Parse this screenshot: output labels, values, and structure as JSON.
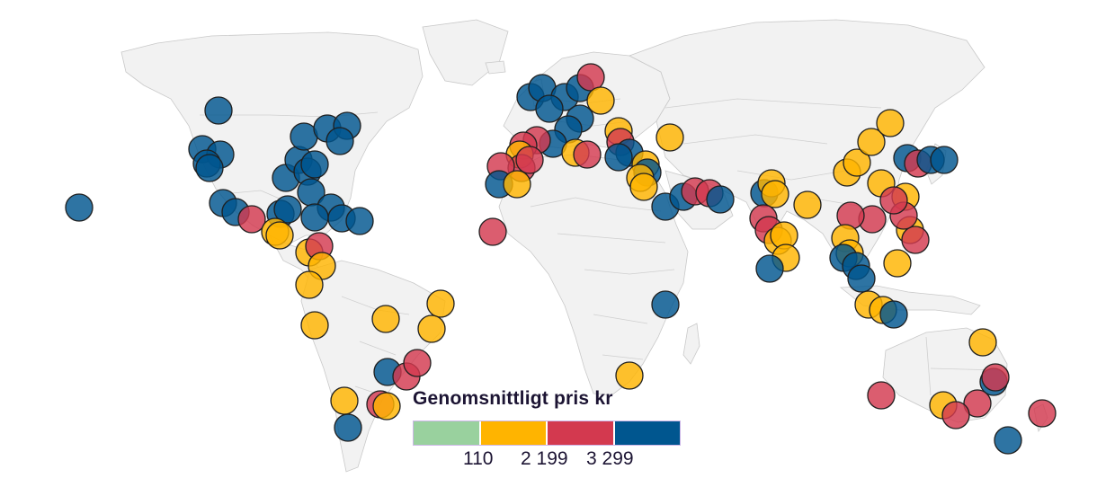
{
  "legend": {
    "title": "Genomsnittligt pris kr",
    "ticks": [
      "110",
      "2 199",
      "3 299"
    ],
    "bins": [
      {
        "name": "low",
        "color": "#99d19e"
      },
      {
        "name": "mid",
        "color": "#ffb400"
      },
      {
        "name": "high",
        "color": "#d3394f"
      },
      {
        "name": "top",
        "color": "#00568f"
      }
    ]
  },
  "colors": {
    "land": "#f2f2f2",
    "border": "#c9c9c9",
    "outline": "#1f1f1f"
  }
}
